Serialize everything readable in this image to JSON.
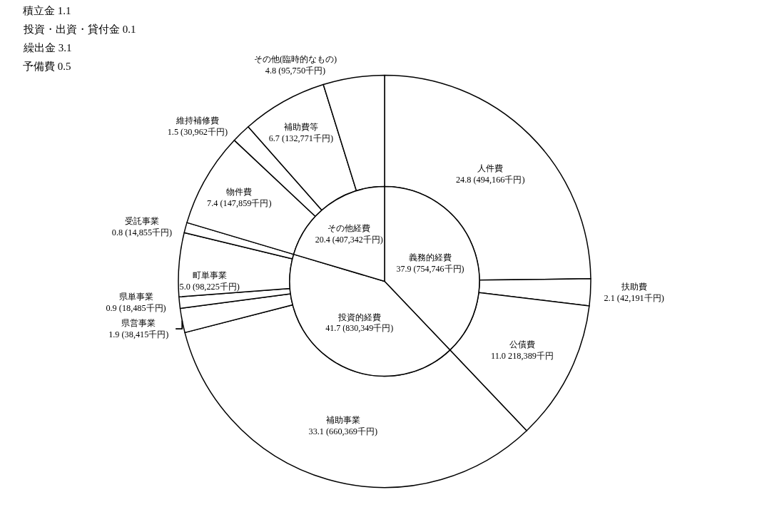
{
  "chart_data": [
    {
      "type": "pie",
      "categories": [
        "義務的経費",
        "投資的経費",
        "その他経費"
      ],
      "values": [
        37.9,
        41.7,
        20.4
      ],
      "value_labels": [
        "37.9 (754,746千円)",
        "41.7 (830,349千円)",
        "20.4 (407,342千円)"
      ],
      "colors": [
        "#ffffff",
        "#ffffff",
        "#ffffff"
      ]
    },
    {
      "type": "donut",
      "categories": [
        "人件費",
        "扶助費",
        "公債費",
        "補助事業",
        "県営事業",
        "県単事業",
        "町単事業",
        "受託事業",
        "物件費",
        "維持補修費",
        "補助費等",
        "その他(臨時的なもの)"
      ],
      "values": [
        24.8,
        2.1,
        11.0,
        33.1,
        1.9,
        0.9,
        5.0,
        0.8,
        7.4,
        1.5,
        6.7,
        4.8
      ],
      "value_labels": [
        "24.8 (494,166千円)",
        "2.1 (42,191千円)",
        "11.0 218,389千円",
        "33.1 (660,369千円)",
        "1.9 (38,415千円)",
        "0.9 (18,485千円)",
        "5.0 (98,225千円)",
        "0.8 (14,855千円)",
        "7.4 (147,859千円)",
        "1.5 (30,962千円)",
        "6.7 (132,771千円)",
        "4.8 (95,750千円)"
      ],
      "colors": [
        "#ffffff",
        "#ffffff",
        "#ffffff",
        "#ffffff",
        "#ffffff",
        "#ffffff",
        "#ffffff",
        "#ffffff",
        "#ffffff",
        "#ffffff",
        "#ffffff",
        "#ffffff"
      ],
      "annotations": [
        "積立金 1.1",
        "投資・出資・貸付金 0.1",
        "繰出金 3.1",
        "予備費 0.5"
      ]
    }
  ]
}
